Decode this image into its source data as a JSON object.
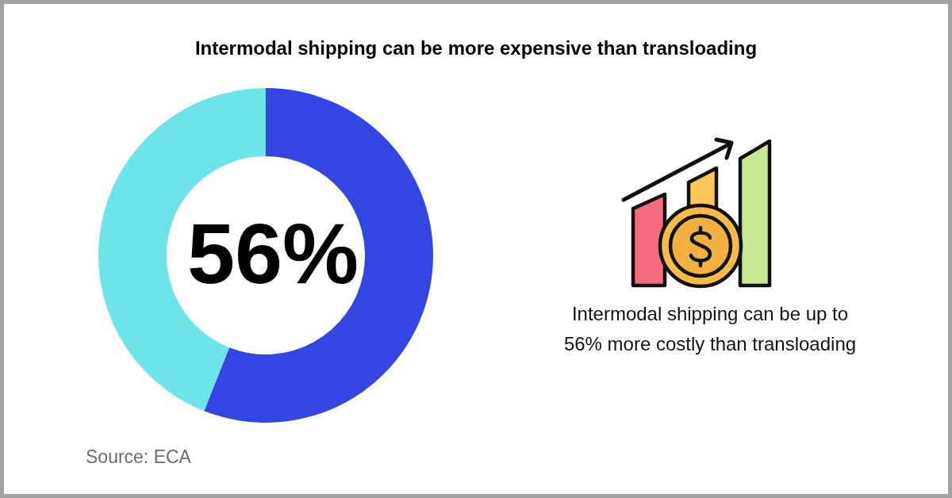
{
  "chart_data": {
    "type": "donut",
    "title": "Intermodal shipping can be more expensive than transloading",
    "categories": [
      null,
      null
    ],
    "values": [
      56,
      44
    ],
    "colors": [
      "#3346e3",
      "#6de5e8"
    ],
    "value_labels": [
      "56%",
      null
    ],
    "annotations": [
      "Intermodal shipping can be up to 56% more costly than transloading",
      "Source: ECA"
    ]
  }
}
